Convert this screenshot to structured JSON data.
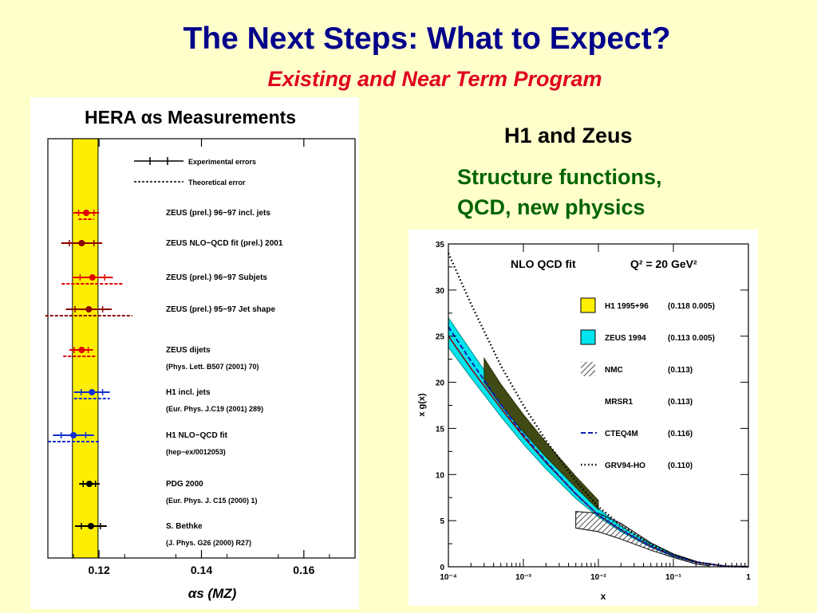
{
  "slide": {
    "title": "The Next Steps:  What to Expect?",
    "subtitle": "Existing and Near Term Program",
    "heading": "H1 and Zeus",
    "text_line1": "Structure functions,",
    "text_line2": "QCD, new physics"
  },
  "colors": {
    "background": "#FFFFCC",
    "title": "#00008B",
    "subtitle": "#E0001B",
    "green_text": "#006400",
    "band_yellow": "#FFEE00",
    "cyan_band": "#00E5EE",
    "olive_band": "#3F4A14"
  },
  "chart_data": [
    {
      "type": "scatter",
      "title": "HERA αs Measurements",
      "xlabel": "αs (MZ)",
      "xlim": [
        0.11,
        0.17
      ],
      "xticks": [
        "0.12",
        "0.14",
        "0.16"
      ],
      "yellow_band": [
        0.1148,
        0.1198
      ],
      "legend": [
        "Experimental errors",
        "Theoretical error"
      ],
      "measurements": [
        {
          "label": "ZEUS (prel.) 96−97 incl. jets",
          "ref": "",
          "value": 0.1175,
          "exp_err": [
            0.0025,
            0.0025
          ],
          "theo_err": [
            0.0015,
            0.0015
          ],
          "color": "#E00000"
        },
        {
          "label": "ZEUS NLO−QCD fit (prel.) 2001",
          "ref": "",
          "value": 0.1166,
          "exp_err": [
            0.004,
            0.004
          ],
          "theo_err": null,
          "color": "#8B0000"
        },
        {
          "label": "ZEUS (prel.) 96−97 Subjets",
          "ref": "",
          "value": 0.1187,
          "exp_err": [
            0.004,
            0.004
          ],
          "theo_err": [
            0.006,
            0.006
          ],
          "color": "#E00000"
        },
        {
          "label": "ZEUS (prel.) 95−97 Jet shape",
          "ref": "",
          "value": 0.118,
          "exp_err": [
            0.0045,
            0.0045
          ],
          "theo_err": [
            0.0085,
            0.0085
          ],
          "color": "#8B0000"
        },
        {
          "label": "ZEUS dijets",
          "ref": "(Phys. Lett. B507 (2001) 70)",
          "value": 0.1166,
          "exp_err": [
            0.0024,
            0.0022
          ],
          "theo_err": [
            0.0036,
            0.0028
          ],
          "color": "#E00000"
        },
        {
          "label": "H1 incl. jets",
          "ref": "(Eur. Phys. J.C19 (2001) 289)",
          "value": 0.1186,
          "exp_err": [
            0.0035,
            0.0035
          ],
          "theo_err": [
            0.0035,
            0.0035
          ],
          "color": "#1030D0"
        },
        {
          "label": "H1 NLO−QCD fit",
          "ref": "(hep−ex/0012053)",
          "value": 0.115,
          "exp_err": [
            0.004,
            0.004
          ],
          "theo_err": [
            0.005,
            0.005
          ],
          "color": "#1030D0"
        },
        {
          "label": "PDG 2000",
          "ref": "(Eur. Phys. J. C15 (2000) 1)",
          "value": 0.1181,
          "exp_err": [
            0.002,
            0.002
          ],
          "theo_err": null,
          "color": "#000000"
        },
        {
          "label": "S. Bethke",
          "ref": "(J. Phys. G26 (2000) R27)",
          "value": 0.1184,
          "exp_err": [
            0.0031,
            0.0031
          ],
          "theo_err": null,
          "color": "#000000"
        }
      ]
    },
    {
      "type": "line",
      "title": "NLO QCD fit",
      "annotation": "Q² = 20 GeV²",
      "xlabel": "x",
      "ylabel": "x g(x)",
      "x_scale": "log",
      "xlim": [
        0.0001,
        1
      ],
      "ylim": [
        0,
        35
      ],
      "xticks": [
        "10⁻⁴",
        "10⁻³",
        "10⁻²",
        "10⁻¹",
        "1"
      ],
      "yticks": [
        0,
        5,
        10,
        15,
        20,
        25,
        30,
        35
      ],
      "grid": false,
      "legend": [
        {
          "label": "H1 1995+96",
          "value": "(0.118 0.005)",
          "style": "yellow box",
          "color": "#FFEE00"
        },
        {
          "label": "ZEUS 1994",
          "value": "(0.113 0.005)",
          "style": "cyan box",
          "color": "#00E5EE"
        },
        {
          "label": "NMC",
          "value": "(0.113)",
          "style": "hatched",
          "color": "#000000"
        },
        {
          "label": "MRSR1",
          "value": "(0.113)",
          "style": "solid",
          "color": "#000000"
        },
        {
          "label": "CTEQ4M",
          "value": "(0.116)",
          "style": "dashed",
          "color": "#1020B0"
        },
        {
          "label": "GRV94-HO",
          "value": "(0.110)",
          "style": "dotted",
          "color": "#000000"
        }
      ],
      "series": [
        {
          "name": "ZEUS 1994",
          "kind": "band",
          "x": [
            0.0001,
            0.0002,
            0.0005,
            0.001,
            0.002,
            0.005,
            0.01,
            0.02,
            0.05,
            0.1,
            0.2,
            0.5,
            1
          ],
          "low": [
            23.8,
            20.5,
            16.3,
            13.3,
            10.6,
            7.4,
            5.4,
            3.8,
            2.1,
            1.1,
            0.45,
            0.05,
            0
          ],
          "high": [
            27,
            23.4,
            18.7,
            15.3,
            12.3,
            8.6,
            6.3,
            4.4,
            2.5,
            1.35,
            0.55,
            0.07,
            0
          ]
        },
        {
          "name": "H1 1995+96",
          "kind": "band",
          "x": [
            0.0003,
            0.0005,
            0.001,
            0.002,
            0.005,
            0.01
          ],
          "low": [
            20,
            17.5,
            14.6,
            11.9,
            8.6,
            6.2
          ],
          "high": [
            22.6,
            19.8,
            16.5,
            13.5,
            9.8,
            7.2
          ]
        },
        {
          "name": "NMC",
          "kind": "hatched",
          "x": [
            0.005,
            0.01,
            0.02,
            0.05,
            0.1,
            0.2,
            0.3
          ],
          "low": [
            4.2,
            3.8,
            3,
            1.8,
            1,
            0.3,
            0.1
          ],
          "high": [
            6,
            5.8,
            4.7,
            2.6,
            1.4,
            0.6,
            0.25
          ]
        },
        {
          "name": "MRSR1",
          "kind": "solid",
          "x": [
            0.0001,
            0.0002,
            0.0005,
            0.001,
            0.002,
            0.005,
            0.01,
            0.02,
            0.05,
            0.1,
            0.2,
            0.5,
            1
          ],
          "y": [
            25,
            21.5,
            17.2,
            14.1,
            11.3,
            7.9,
            5.6,
            4,
            2.2,
            1.2,
            0.5,
            0.05,
            0
          ]
        },
        {
          "name": "CTEQ4M",
          "kind": "dashed",
          "x": [
            0.0001,
            0.0002,
            0.0005,
            0.001,
            0.002,
            0.005,
            0.01,
            0.02,
            0.05,
            0.1,
            0.2,
            0.5,
            1
          ],
          "y": [
            26,
            22.3,
            17.6,
            14.3,
            11.4,
            7.9,
            5.6,
            4,
            2.2,
            1.2,
            0.5,
            0.05,
            0
          ]
        },
        {
          "name": "GRV94-HO",
          "kind": "dotted",
          "x": [
            0.0001,
            0.0002,
            0.0005,
            0.001,
            0.002,
            0.005,
            0.01,
            0.02,
            0.05,
            0.1,
            0.2,
            0.5,
            1
          ],
          "y": [
            34,
            28.5,
            21.8,
            17.5,
            13.7,
            9.3,
            6.5,
            4.5,
            2.4,
            1.3,
            0.5,
            0.05,
            0
          ]
        }
      ]
    }
  ]
}
